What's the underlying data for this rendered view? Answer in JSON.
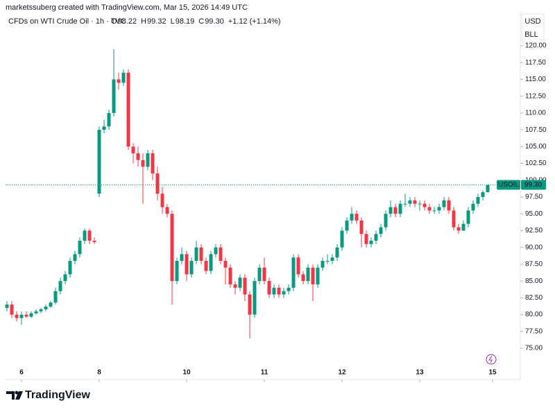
{
  "chart_data": {
    "type": "candlestick",
    "attribution": "marketssuberg created with TradingView.com, Mar 15, 2026 14:49 UTC",
    "title": "CFDs on WTI Crude Oil · 1h · TVC",
    "legend": {
      "o_key": "O",
      "open": "98.22",
      "h_key": "H",
      "high": "99.32",
      "l_key": "L",
      "low": "98.19",
      "c_key": "C",
      "close": "99.30",
      "change": "+1.12 (+1.14%)"
    },
    "currency": "USD",
    "unit": "BLL",
    "brand": "TradingView",
    "up_color": "#089981",
    "down_color": "#f23645",
    "price_tag": {
      "symbol": "USOIL",
      "value": 99.3,
      "label": "99.30"
    },
    "open": [
      81,
      81.5,
      80,
      79.5,
      80,
      79.7,
      80.2,
      80.5,
      80.8,
      81.2,
      81.8,
      83.5,
      85,
      86,
      88,
      89,
      91,
      92.5,
      91,
      98,
      107.5,
      108,
      110,
      115,
      114.5,
      116,
      105,
      104,
      103,
      102,
      104,
      101,
      98,
      96,
      95,
      85,
      88,
      89,
      86,
      88,
      90,
      88,
      86.5,
      89,
      90,
      88,
      87,
      84.5,
      84,
      85.5,
      83,
      80,
      85,
      87,
      85,
      83,
      84,
      83,
      83.5,
      84,
      88.5,
      86,
      85,
      87,
      84.5,
      87,
      88,
      88,
      88.5,
      90,
      92.5,
      94,
      95,
      94,
      92,
      90.5,
      91,
      92,
      93,
      95,
      96,
      95,
      96.5,
      96.5,
      97,
      96.5,
      96.5,
      96,
      95.5,
      95.5,
      96,
      97,
      95.5,
      93,
      92.5,
      93.5,
      95.5,
      96.5,
      97.5,
      98.22
    ],
    "high": [
      82,
      82,
      80.5,
      80.5,
      80.5,
      80.5,
      80.8,
      81,
      81.5,
      82,
      84,
      85.5,
      86.5,
      88.5,
      89.5,
      91.5,
      92.8,
      92.8,
      91.5,
      108,
      109,
      110.5,
      119.5,
      116,
      116.5,
      116.5,
      105.5,
      105,
      104,
      104.5,
      104.5,
      102,
      99,
      96.5,
      95.5,
      88.5,
      90,
      89.5,
      88.5,
      91,
      90.5,
      88.5,
      89.5,
      90.5,
      90.5,
      88.5,
      87.5,
      85,
      86,
      86,
      83.5,
      85.5,
      87.5,
      88.5,
      85.5,
      84.5,
      84.5,
      84,
      84.5,
      89,
      89,
      86.5,
      87.5,
      87.5,
      87.5,
      88.5,
      89,
      89,
      90.5,
      93,
      94.5,
      96,
      95.5,
      94.5,
      92.5,
      91.5,
      92.5,
      93.5,
      95.5,
      97,
      96.5,
      97,
      98,
      97.5,
      97.5,
      97,
      97,
      96.5,
      96,
      96.5,
      97.5,
      97.5,
      96,
      93.5,
      94,
      96,
      97,
      98,
      98.5,
      99.32
    ],
    "low": [
      80.5,
      79.5,
      79,
      78.5,
      79.5,
      79.5,
      80,
      80.2,
      80.5,
      81,
      81.5,
      83,
      84.5,
      85.5,
      87.5,
      88.5,
      90.5,
      90.5,
      90.5,
      97.5,
      107,
      107.5,
      109.5,
      113.5,
      114,
      104.5,
      102.5,
      102,
      96.5,
      101.5,
      100,
      97,
      95,
      94.5,
      81.5,
      84.5,
      87.5,
      85,
      85.5,
      87.5,
      87.5,
      86,
      86,
      88.5,
      87.5,
      84.5,
      84,
      83,
      83.5,
      82,
      76.5,
      79.5,
      84.5,
      84.5,
      82.5,
      82.5,
      82.5,
      82.5,
      83,
      83.5,
      85.5,
      84.5,
      84.5,
      82,
      84,
      86.5,
      87.5,
      87.5,
      88,
      89.5,
      92,
      93.5,
      93.5,
      90,
      90,
      90,
      90.5,
      91.5,
      92.5,
      94.5,
      94.5,
      94.5,
      96,
      96,
      96,
      95.5,
      95.5,
      95,
      95,
      95,
      95.5,
      95,
      92.5,
      92,
      92.5,
      93,
      95,
      96,
      97,
      98.19
    ],
    "close": [
      81.5,
      80,
      79.5,
      80,
      79.7,
      80.2,
      80.5,
      80.8,
      81.2,
      81.8,
      83.5,
      85,
      86,
      88,
      89,
      91,
      92.5,
      91,
      90.8,
      107.5,
      108,
      110,
      115,
      114.5,
      116,
      105,
      104,
      103,
      102,
      104,
      101,
      98,
      96,
      95,
      85,
      88,
      89,
      86,
      88,
      90,
      88,
      86.5,
      89,
      90,
      88,
      87,
      84.5,
      84,
      85.5,
      83,
      80,
      85,
      87,
      85,
      83,
      84,
      83,
      83.5,
      84,
      88.5,
      86,
      85,
      87,
      84.5,
      87,
      88,
      88,
      88.5,
      90,
      92.5,
      94,
      95,
      94,
      92,
      90.5,
      91,
      92,
      93,
      95,
      96,
      95,
      96.5,
      96.5,
      97,
      96.5,
      96.5,
      96,
      95.5,
      95.5,
      96,
      97,
      95.5,
      93,
      92.5,
      93.5,
      95.5,
      96.5,
      97.5,
      98.22,
      99.3
    ],
    "xticks": [
      {
        "value": 3,
        "label": "6"
      },
      {
        "value": 19,
        "label": "8"
      },
      {
        "value": 37,
        "label": "10"
      },
      {
        "value": 53,
        "label": "11"
      },
      {
        "value": 69,
        "label": "12"
      },
      {
        "value": 85,
        "label": "13"
      },
      {
        "value": 100,
        "label": "15"
      }
    ],
    "ylim": [
      72.5,
      122.5
    ],
    "yticks": [
      {
        "value": 75,
        "label": "75.00"
      },
      {
        "value": 77.5,
        "label": "77.50"
      },
      {
        "value": 80,
        "label": "80.00"
      },
      {
        "value": 82.5,
        "label": "82.50"
      },
      {
        "value": 85,
        "label": "85.00"
      },
      {
        "value": 87.5,
        "label": "87.50"
      },
      {
        "value": 90,
        "label": "90.00"
      },
      {
        "value": 92.5,
        "label": "92.50"
      },
      {
        "value": 95,
        "label": "95.00"
      },
      {
        "value": 97.5,
        "label": "97.50"
      },
      {
        "value": 100,
        "label": "100.00"
      },
      {
        "value": 102.5,
        "label": "102.50"
      },
      {
        "value": 105,
        "label": "105.00"
      },
      {
        "value": 107.5,
        "label": "107.50"
      },
      {
        "value": 110,
        "label": "110.00"
      },
      {
        "value": 112.5,
        "label": "112.50"
      },
      {
        "value": 115,
        "label": "115.00"
      },
      {
        "value": 117.5,
        "label": "117.50"
      },
      {
        "value": 120,
        "label": "120.00"
      }
    ]
  }
}
